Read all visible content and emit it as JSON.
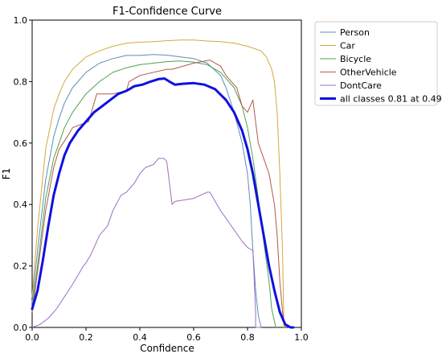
{
  "chart_data": {
    "type": "line",
    "title": "F1-Confidence Curve",
    "xlabel": "Confidence",
    "ylabel": "F1",
    "xlim": [
      0.0,
      1.0
    ],
    "ylim": [
      0.0,
      1.0
    ],
    "xticks": [
      "0.0",
      "0.2",
      "0.4",
      "0.6",
      "0.8",
      "1.0"
    ],
    "yticks": [
      "0.0",
      "0.2",
      "0.4",
      "0.6",
      "0.8",
      "1.0"
    ],
    "grid": false,
    "legend_position": "outside-right",
    "series": [
      {
        "name": "Person",
        "color": "#5b8db8",
        "width": 1,
        "x": [
          0.0,
          0.02,
          0.05,
          0.08,
          0.1,
          0.12,
          0.15,
          0.2,
          0.25,
          0.3,
          0.35,
          0.4,
          0.45,
          0.5,
          0.55,
          0.6,
          0.65,
          0.7,
          0.72,
          0.75,
          0.78,
          0.8,
          0.81,
          0.82,
          0.83,
          0.84,
          0.85
        ],
        "y": [
          0.08,
          0.25,
          0.48,
          0.62,
          0.68,
          0.73,
          0.78,
          0.83,
          0.86,
          0.875,
          0.885,
          0.885,
          0.888,
          0.886,
          0.88,
          0.875,
          0.86,
          0.82,
          0.78,
          0.7,
          0.6,
          0.5,
          0.4,
          0.25,
          0.12,
          0.04,
          0.0
        ]
      },
      {
        "name": "Car",
        "color": "#d4a93a",
        "width": 1,
        "x": [
          0.0,
          0.02,
          0.05,
          0.08,
          0.1,
          0.12,
          0.15,
          0.2,
          0.25,
          0.3,
          0.35,
          0.4,
          0.45,
          0.5,
          0.55,
          0.6,
          0.65,
          0.7,
          0.75,
          0.8,
          0.85,
          0.87,
          0.89,
          0.9,
          0.91,
          0.92,
          0.93,
          0.935
        ],
        "y": [
          0.1,
          0.32,
          0.58,
          0.71,
          0.76,
          0.8,
          0.84,
          0.88,
          0.9,
          0.915,
          0.925,
          0.928,
          0.93,
          0.933,
          0.935,
          0.935,
          0.932,
          0.93,
          0.925,
          0.915,
          0.9,
          0.88,
          0.84,
          0.8,
          0.7,
          0.5,
          0.25,
          0.0
        ]
      },
      {
        "name": "Bicycle",
        "color": "#4fa34f",
        "width": 1,
        "x": [
          0.0,
          0.02,
          0.05,
          0.08,
          0.1,
          0.12,
          0.15,
          0.2,
          0.25,
          0.3,
          0.35,
          0.4,
          0.45,
          0.5,
          0.55,
          0.6,
          0.65,
          0.7,
          0.75,
          0.78,
          0.8,
          0.82,
          0.84,
          0.86,
          0.88,
          0.89,
          0.9,
          0.905
        ],
        "y": [
          0.06,
          0.2,
          0.42,
          0.55,
          0.6,
          0.65,
          0.7,
          0.76,
          0.8,
          0.83,
          0.845,
          0.855,
          0.86,
          0.865,
          0.867,
          0.863,
          0.855,
          0.83,
          0.78,
          0.72,
          0.65,
          0.55,
          0.42,
          0.28,
          0.15,
          0.06,
          0.02,
          0.0
        ]
      },
      {
        "name": "OtherVehicle",
        "color": "#b05a4a",
        "width": 1,
        "x": [
          0.0,
          0.02,
          0.05,
          0.08,
          0.1,
          0.13,
          0.15,
          0.18,
          0.21,
          0.22,
          0.24,
          0.3,
          0.35,
          0.36,
          0.4,
          0.5,
          0.52,
          0.6,
          0.66,
          0.7,
          0.72,
          0.74,
          0.76,
          0.78,
          0.8,
          0.82,
          0.84,
          0.86,
          0.88,
          0.9,
          0.91,
          0.92,
          0.93,
          0.94
        ],
        "y": [
          0.05,
          0.18,
          0.38,
          0.52,
          0.58,
          0.62,
          0.65,
          0.66,
          0.67,
          0.7,
          0.76,
          0.76,
          0.77,
          0.8,
          0.82,
          0.84,
          0.84,
          0.86,
          0.87,
          0.85,
          0.82,
          0.8,
          0.78,
          0.72,
          0.7,
          0.74,
          0.6,
          0.55,
          0.5,
          0.4,
          0.3,
          0.15,
          0.05,
          0.0
        ]
      },
      {
        "name": "DontCare",
        "color": "#9b6fc4",
        "width": 1,
        "x": [
          0.0,
          0.03,
          0.06,
          0.09,
          0.12,
          0.15,
          0.17,
          0.19,
          0.2,
          0.22,
          0.23,
          0.25,
          0.26,
          0.28,
          0.3,
          0.33,
          0.35,
          0.38,
          0.4,
          0.42,
          0.45,
          0.47,
          0.49,
          0.5,
          0.52,
          0.53,
          0.6,
          0.65,
          0.66,
          0.7,
          0.74,
          0.78,
          0.8,
          0.82,
          0.83,
          0.83,
          0.85
        ],
        "y": [
          0.0,
          0.01,
          0.03,
          0.06,
          0.1,
          0.14,
          0.17,
          0.2,
          0.21,
          0.24,
          0.26,
          0.3,
          0.31,
          0.33,
          0.38,
          0.43,
          0.44,
          0.47,
          0.5,
          0.52,
          0.53,
          0.55,
          0.55,
          0.54,
          0.4,
          0.41,
          0.42,
          0.44,
          0.44,
          0.38,
          0.33,
          0.28,
          0.26,
          0.25,
          0.05,
          0.0,
          0.0
        ]
      },
      {
        "name": "all classes 0.81 at 0.492",
        "color": "#1010e0",
        "width": 3,
        "x": [
          0.0,
          0.02,
          0.04,
          0.06,
          0.08,
          0.1,
          0.12,
          0.14,
          0.17,
          0.2,
          0.23,
          0.26,
          0.29,
          0.32,
          0.35,
          0.38,
          0.41,
          0.44,
          0.47,
          0.492,
          0.51,
          0.53,
          0.56,
          0.6,
          0.64,
          0.68,
          0.72,
          0.75,
          0.78,
          0.8,
          0.82,
          0.84,
          0.86,
          0.88,
          0.9,
          0.92,
          0.94,
          0.96,
          0.97
        ],
        "y": [
          0.06,
          0.12,
          0.22,
          0.33,
          0.43,
          0.5,
          0.56,
          0.6,
          0.64,
          0.67,
          0.7,
          0.72,
          0.74,
          0.76,
          0.77,
          0.785,
          0.79,
          0.8,
          0.808,
          0.81,
          0.8,
          0.79,
          0.793,
          0.795,
          0.79,
          0.775,
          0.74,
          0.7,
          0.64,
          0.58,
          0.5,
          0.4,
          0.3,
          0.2,
          0.12,
          0.05,
          0.01,
          0.0,
          0.0
        ]
      }
    ]
  }
}
